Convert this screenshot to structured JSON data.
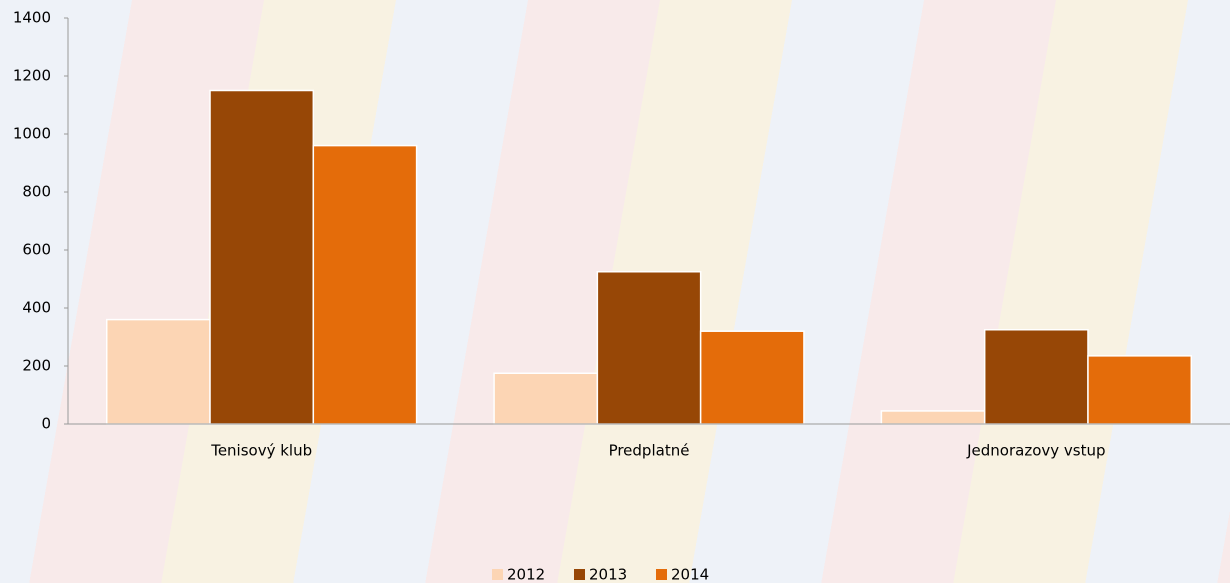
{
  "chart_data": {
    "type": "bar",
    "categories": [
      "Tenisový klub",
      "Predplatné",
      "Jednorazovy vstup"
    ],
    "series": [
      {
        "name": "2012",
        "color": "#fcd5b4",
        "values": [
          360,
          175,
          45
        ]
      },
      {
        "name": "2013",
        "color": "#974706",
        "values": [
          1150,
          525,
          325
        ]
      },
      {
        "name": "2014",
        "color": "#e46c0a",
        "values": [
          960,
          320,
          235
        ]
      }
    ],
    "ylim": [
      0,
      1400
    ],
    "yticks": [
      0,
      200,
      400,
      600,
      800,
      1000,
      1200,
      1400
    ],
    "grid": false,
    "legend": "bottom"
  }
}
